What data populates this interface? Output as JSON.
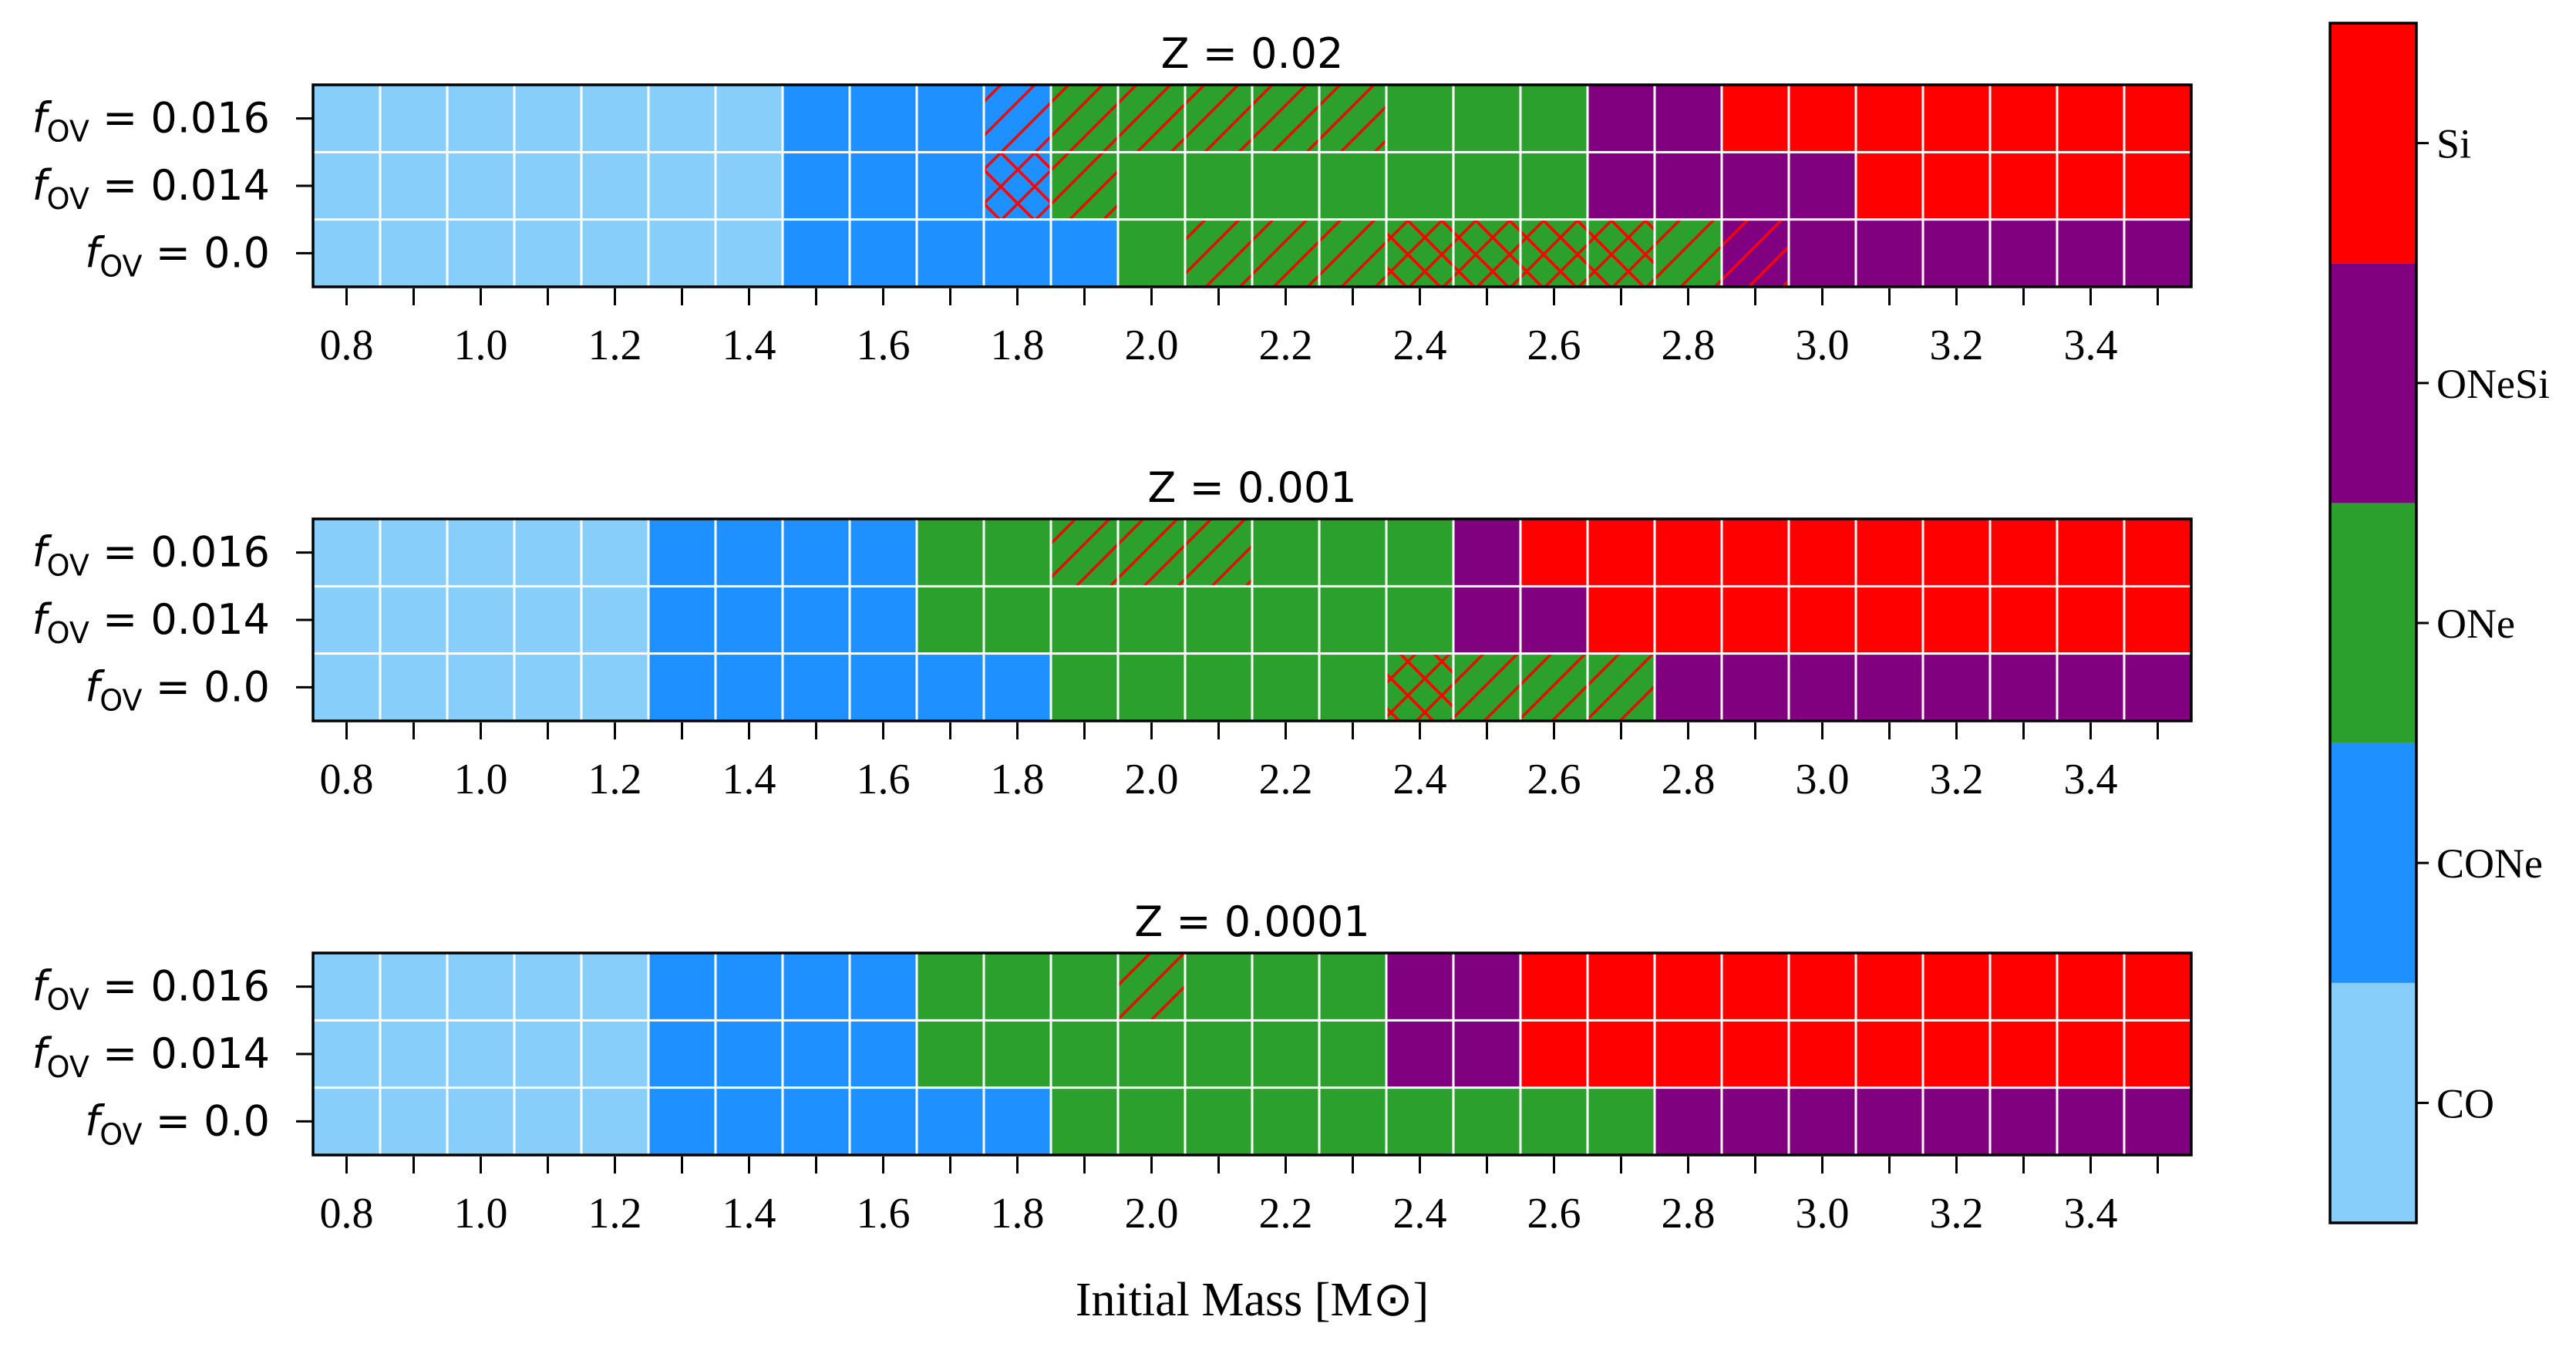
{
  "chart_data": [
    {
      "type": "heatmap",
      "title": "Z = 0.02",
      "xlabel": "Initial Mass [M⊙]",
      "ylabel": "",
      "x_ticks": [
        "0.8",
        "1.0",
        "1.2",
        "1.4",
        "1.6",
        "1.8",
        "2.0",
        "2.2",
        "2.4",
        "2.6",
        "2.8",
        "3.0",
        "3.2",
        "3.4"
      ],
      "xlim": [
        0.75,
        3.55
      ],
      "masses": [
        0.8,
        0.9,
        1.0,
        1.1,
        1.2,
        1.3,
        1.4,
        1.5,
        1.6,
        1.7,
        1.8,
        1.9,
        2.0,
        2.1,
        2.2,
        2.3,
        2.4,
        2.5,
        2.6,
        2.7,
        2.8,
        2.9,
        3.0,
        3.1,
        3.2,
        3.3,
        3.4,
        3.5
      ],
      "rows": [
        {
          "label": "f_OV = 0.016",
          "fov": "0.016",
          "classes": [
            0,
            0,
            0,
            0,
            0,
            0,
            0,
            1,
            1,
            1,
            1,
            2,
            2,
            2,
            2,
            2,
            2,
            2,
            2,
            3,
            3,
            4,
            4,
            4,
            4,
            4,
            4,
            4
          ],
          "hatch": [
            0,
            0,
            0,
            0,
            0,
            0,
            0,
            0,
            0,
            0,
            1,
            1,
            1,
            1,
            1,
            1,
            0,
            0,
            0,
            0,
            0,
            0,
            0,
            0,
            0,
            0,
            0,
            0
          ]
        },
        {
          "label": "f_OV = 0.014",
          "fov": "0.014",
          "classes": [
            0,
            0,
            0,
            0,
            0,
            0,
            0,
            1,
            1,
            1,
            1,
            2,
            2,
            2,
            2,
            2,
            2,
            2,
            2,
            3,
            3,
            3,
            3,
            4,
            4,
            4,
            4,
            4
          ],
          "hatch": [
            0,
            0,
            0,
            0,
            0,
            0,
            0,
            0,
            0,
            0,
            2,
            1,
            0,
            0,
            0,
            0,
            0,
            0,
            0,
            0,
            0,
            0,
            0,
            0,
            0,
            0,
            0,
            0
          ]
        },
        {
          "label": "f_OV = 0.0",
          "fov": "0.0",
          "classes": [
            0,
            0,
            0,
            0,
            0,
            0,
            0,
            1,
            1,
            1,
            1,
            1,
            2,
            2,
            2,
            2,
            2,
            2,
            2,
            2,
            2,
            3,
            3,
            3,
            3,
            3,
            3,
            3
          ],
          "hatch": [
            0,
            0,
            0,
            0,
            0,
            0,
            0,
            0,
            0,
            0,
            0,
            0,
            0,
            1,
            1,
            1,
            2,
            2,
            2,
            2,
            1,
            1,
            0,
            0,
            0,
            0,
            0,
            0
          ]
        }
      ]
    },
    {
      "type": "heatmap",
      "title": "Z = 0.001",
      "xlabel": "",
      "ylabel": "",
      "x_ticks": [
        "0.8",
        "1.0",
        "1.2",
        "1.4",
        "1.6",
        "1.8",
        "2.0",
        "2.2",
        "2.4",
        "2.6",
        "2.8",
        "3.0",
        "3.2",
        "3.4"
      ],
      "xlim": [
        0.75,
        3.55
      ],
      "masses": [
        0.8,
        0.9,
        1.0,
        1.1,
        1.2,
        1.3,
        1.4,
        1.5,
        1.6,
        1.7,
        1.8,
        1.9,
        2.0,
        2.1,
        2.2,
        2.3,
        2.4,
        2.5,
        2.6,
        2.7,
        2.8,
        2.9,
        3.0,
        3.1,
        3.2,
        3.3,
        3.4,
        3.5
      ],
      "rows": [
        {
          "label": "f_OV = 0.016",
          "fov": "0.016",
          "classes": [
            0,
            0,
            0,
            0,
            0,
            1,
            1,
            1,
            1,
            2,
            2,
            2,
            2,
            2,
            2,
            2,
            2,
            3,
            4,
            4,
            4,
            4,
            4,
            4,
            4,
            4,
            4,
            4
          ],
          "hatch": [
            0,
            0,
            0,
            0,
            0,
            0,
            0,
            0,
            0,
            0,
            0,
            1,
            1,
            1,
            0,
            0,
            0,
            0,
            0,
            0,
            0,
            0,
            0,
            0,
            0,
            0,
            0,
            0
          ]
        },
        {
          "label": "f_OV = 0.014",
          "fov": "0.014",
          "classes": [
            0,
            0,
            0,
            0,
            0,
            1,
            1,
            1,
            1,
            2,
            2,
            2,
            2,
            2,
            2,
            2,
            2,
            3,
            3,
            4,
            4,
            4,
            4,
            4,
            4,
            4,
            4,
            4
          ],
          "hatch": [
            0,
            0,
            0,
            0,
            0,
            0,
            0,
            0,
            0,
            0,
            0,
            0,
            0,
            0,
            0,
            0,
            0,
            0,
            0,
            0,
            0,
            0,
            0,
            0,
            0,
            0,
            0,
            0
          ]
        },
        {
          "label": "f_OV = 0.0",
          "fov": "0.0",
          "classes": [
            0,
            0,
            0,
            0,
            0,
            1,
            1,
            1,
            1,
            1,
            1,
            2,
            2,
            2,
            2,
            2,
            2,
            2,
            2,
            2,
            3,
            3,
            3,
            3,
            3,
            3,
            3,
            3
          ],
          "hatch": [
            0,
            0,
            0,
            0,
            0,
            0,
            0,
            0,
            0,
            0,
            0,
            0,
            0,
            0,
            0,
            0,
            2,
            1,
            1,
            1,
            0,
            0,
            0,
            0,
            0,
            0,
            0,
            0
          ]
        }
      ]
    },
    {
      "type": "heatmap",
      "title": "Z = 0.0001",
      "xlabel": "",
      "ylabel": "",
      "x_ticks": [
        "0.8",
        "1.0",
        "1.2",
        "1.4",
        "1.6",
        "1.8",
        "2.0",
        "2.2",
        "2.4",
        "2.6",
        "2.8",
        "3.0",
        "3.2",
        "3.4"
      ],
      "xlim": [
        0.75,
        3.55
      ],
      "masses": [
        0.8,
        0.9,
        1.0,
        1.1,
        1.2,
        1.3,
        1.4,
        1.5,
        1.6,
        1.7,
        1.8,
        1.9,
        2.0,
        2.1,
        2.2,
        2.3,
        2.4,
        2.5,
        2.6,
        2.7,
        2.8,
        2.9,
        3.0,
        3.1,
        3.2,
        3.3,
        3.4,
        3.5
      ],
      "rows": [
        {
          "label": "f_OV = 0.016",
          "fov": "0.016",
          "classes": [
            0,
            0,
            0,
            0,
            0,
            1,
            1,
            1,
            1,
            2,
            2,
            2,
            2,
            2,
            2,
            2,
            3,
            3,
            4,
            4,
            4,
            4,
            4,
            4,
            4,
            4,
            4,
            4
          ],
          "hatch": [
            0,
            0,
            0,
            0,
            0,
            0,
            0,
            0,
            0,
            0,
            0,
            0,
            1,
            0,
            0,
            0,
            0,
            0,
            0,
            0,
            0,
            0,
            0,
            0,
            0,
            0,
            0,
            0
          ]
        },
        {
          "label": "f_OV = 0.014",
          "fov": "0.014",
          "classes": [
            0,
            0,
            0,
            0,
            0,
            1,
            1,
            1,
            1,
            2,
            2,
            2,
            2,
            2,
            2,
            2,
            3,
            3,
            4,
            4,
            4,
            4,
            4,
            4,
            4,
            4,
            4,
            4
          ],
          "hatch": [
            0,
            0,
            0,
            0,
            0,
            0,
            0,
            0,
            0,
            0,
            0,
            0,
            0,
            0,
            0,
            0,
            0,
            0,
            0,
            0,
            0,
            0,
            0,
            0,
            0,
            0,
            0,
            0
          ]
        },
        {
          "label": "f_OV = 0.0",
          "fov": "0.0",
          "classes": [
            0,
            0,
            0,
            0,
            0,
            1,
            1,
            1,
            1,
            1,
            1,
            2,
            2,
            2,
            2,
            2,
            2,
            2,
            2,
            2,
            3,
            3,
            3,
            3,
            3,
            3,
            3,
            3
          ],
          "hatch": [
            0,
            0,
            0,
            0,
            0,
            0,
            0,
            0,
            0,
            0,
            0,
            0,
            0,
            0,
            0,
            0,
            0,
            0,
            0,
            0,
            0,
            0,
            0,
            0,
            0,
            0,
            0,
            0
          ]
        }
      ]
    }
  ],
  "colorbar": {
    "categories": [
      "CO",
      "CONe",
      "ONe",
      "ONeSi",
      "Si"
    ],
    "colors": [
      "#87cefa",
      "#1e90ff",
      "#2ca02c",
      "#800080",
      "#ff0000"
    ]
  },
  "styles": {
    "hatch_color": "#ff0000",
    "grid_color": "#ffffff"
  }
}
